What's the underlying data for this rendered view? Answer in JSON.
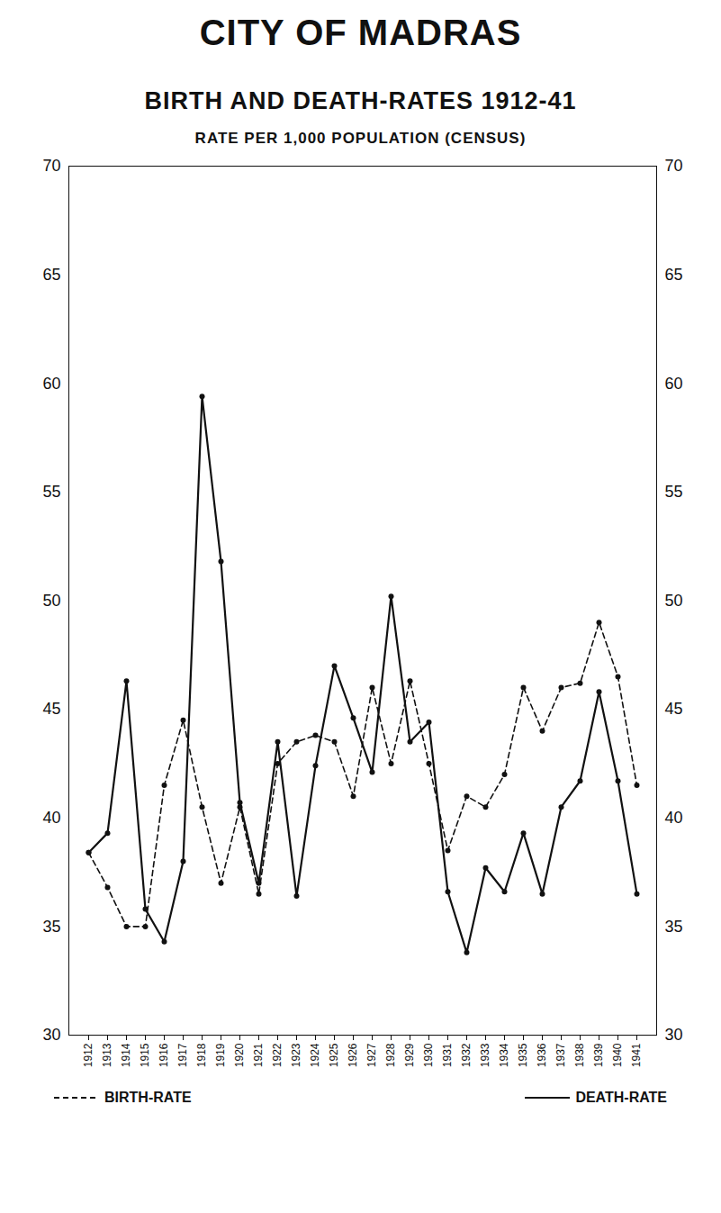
{
  "chart_data": {
    "type": "line",
    "title": "CITY OF MADRAS",
    "subtitle": "BIRTH AND DEATH-RATES 1912-41",
    "y_label": "RATE PER 1,000 POPULATION (CENSUS)",
    "categories": [
      "1912",
      "1913",
      "1914",
      "1915",
      "1916",
      "1917",
      "1918",
      "1919",
      "1920",
      "1921",
      "1922",
      "1923",
      "1924",
      "1925",
      "1926",
      "1927",
      "1928",
      "1929",
      "1930",
      "1931",
      "1932",
      "1933",
      "1934",
      "1935",
      "1936",
      "1937",
      "1938",
      "1939",
      "1940",
      "1941"
    ],
    "series": [
      {
        "name": "BIRTH-RATE",
        "color": "#111111",
        "line_style": "dashed",
        "marker": "dot",
        "values": [
          38.4,
          36.8,
          35.0,
          35.0,
          41.5,
          44.5,
          40.5,
          37.0,
          40.5,
          36.5,
          42.5,
          43.5,
          43.8,
          43.5,
          41.0,
          46.0,
          42.5,
          46.3,
          42.5,
          38.5,
          41.0,
          40.5,
          42.0,
          46.0,
          44.0,
          46.0,
          46.2,
          49.0,
          46.5,
          41.5
        ]
      },
      {
        "name": "DEATH-RATE",
        "color": "#111111",
        "line_style": "solid",
        "marker": "dot",
        "values": [
          38.4,
          39.3,
          46.3,
          35.8,
          34.3,
          38.0,
          59.4,
          51.8,
          40.7,
          37.0,
          43.5,
          36.4,
          42.4,
          47.0,
          44.6,
          42.1,
          50.2,
          43.5,
          44.4,
          36.6,
          33.8,
          37.7,
          36.6,
          39.3,
          36.5,
          40.5,
          41.7,
          45.8,
          41.7,
          36.5
        ]
      }
    ],
    "ylim": [
      30,
      70
    ],
    "yticks": [
      30,
      35,
      40,
      45,
      50,
      55,
      60,
      65,
      70
    ],
    "grid": false
  }
}
